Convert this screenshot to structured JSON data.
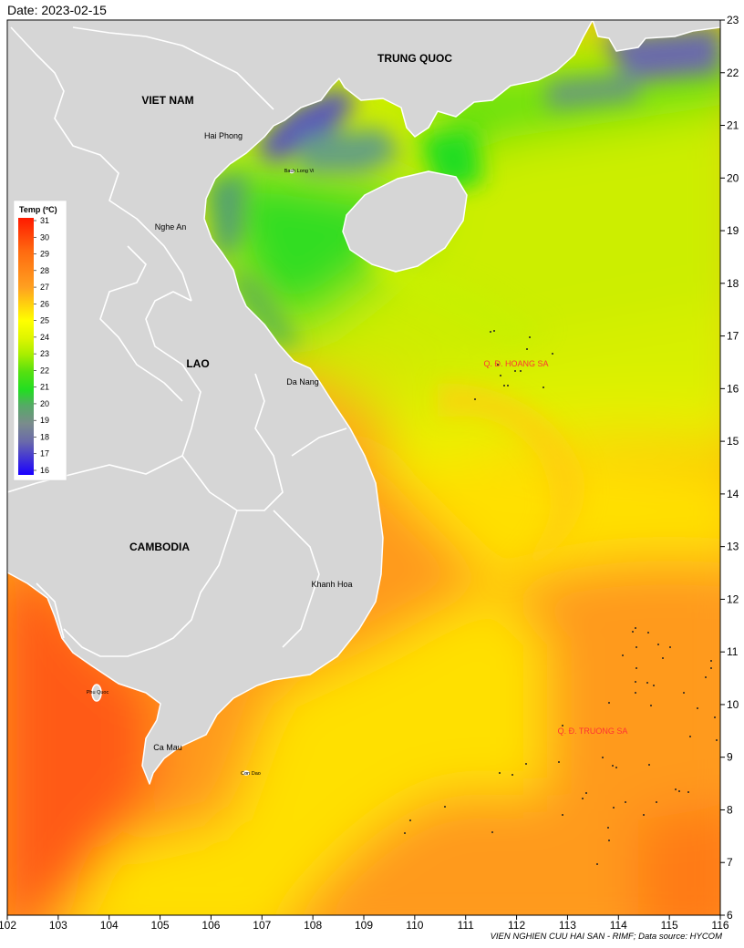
{
  "header": {
    "date": "Date: 2023-02-15"
  },
  "footer": {
    "credit": "VIEN NGHIEN CUU HAI SAN - RIMF; Data source: HYCOM"
  },
  "axes": {
    "x_ticks": [
      "102",
      "103",
      "104",
      "105",
      "106",
      "107",
      "108",
      "109",
      "110",
      "111",
      "112",
      "113",
      "114",
      "115",
      "116"
    ],
    "y_ticks": [
      "6",
      "7",
      "8",
      "9",
      "10",
      "11",
      "12",
      "13",
      "14",
      "15",
      "16",
      "17",
      "18",
      "19",
      "20",
      "21",
      "22",
      "23"
    ]
  },
  "legend": {
    "title": "Temp (ºC)",
    "labels": [
      "31",
      "30",
      "29",
      "28",
      "27",
      "26",
      "25",
      "24",
      "23",
      "22",
      "21",
      "20",
      "19",
      "18",
      "17",
      "16"
    ],
    "colors": {
      "red": "#ff1a00",
      "orange": "#ff8c1a",
      "yellow": "#ffff00",
      "lime": "#aaee00",
      "green": "#22dd22",
      "grey": "#7a8c8c",
      "blue": "#1a00ff"
    }
  },
  "places": {
    "countries": {
      "trung_quoc": "TRUNG QUOC",
      "viet_nam": "VIET NAM",
      "lao": "LAO",
      "cambodia": "CAMBODIA"
    },
    "cities": {
      "hai_phong": "Hai Phong",
      "bach_long_vi": "Bach Long Vi",
      "nghe_an": "Nghe An",
      "da_nang": "Da Nang",
      "khanh_hoa": "Khanh Hoa",
      "phu_quoc": "Phu Quoc",
      "ca_mau": "Ca Mau",
      "con_dao": "Con Dao"
    },
    "archipelagos": {
      "hoang_sa": "Q. Đ. HOANG SA",
      "truong_sa": "Q. Đ. TRUONG SA"
    }
  },
  "colors": {
    "land": "#d6d6d6",
    "border": "#ffffff",
    "archipelago_label": "#ff3333"
  }
}
